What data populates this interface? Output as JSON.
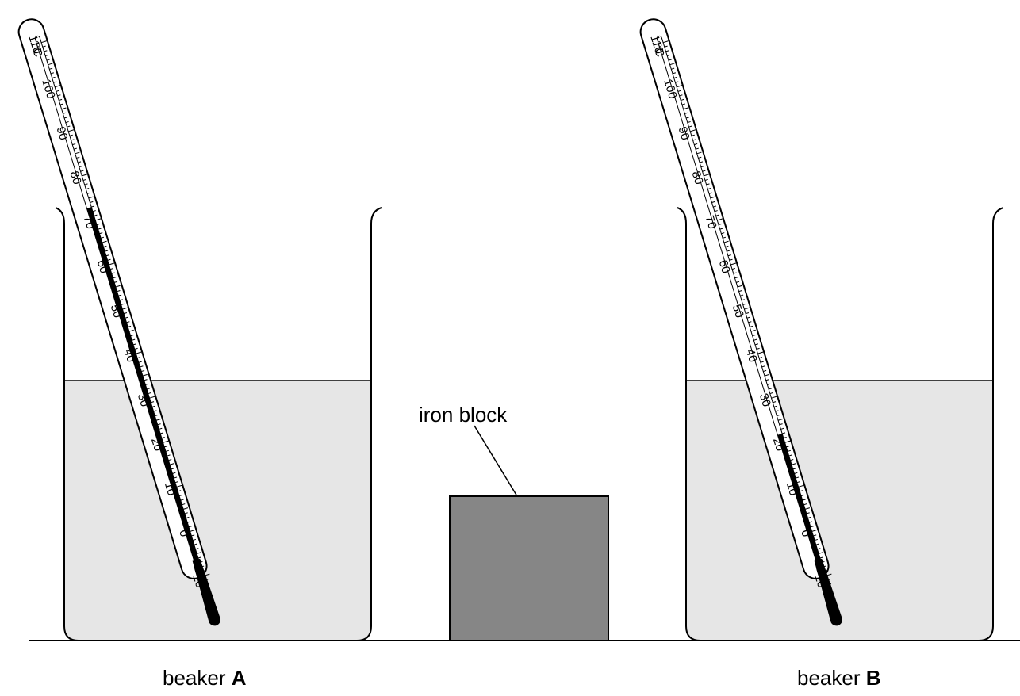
{
  "labels": {
    "iron_block": "iron block",
    "beaker_a_prefix": "beaker ",
    "beaker_a_letter": "A",
    "beaker_b_prefix": "beaker ",
    "beaker_b_letter": "B"
  },
  "thermometer_scale": {
    "unit": "°C",
    "numbers": [
      -10,
      0,
      10,
      20,
      30,
      40,
      50,
      60,
      70,
      80,
      90,
      100,
      110
    ]
  },
  "thermometers": [
    {
      "id": "A",
      "reading_c": 73
    },
    {
      "id": "B",
      "reading_c": 22
    }
  ],
  "colors": {
    "water": "#e6e6e6",
    "iron_block": "#868686",
    "mercury": "#000000",
    "outline": "#000000"
  }
}
